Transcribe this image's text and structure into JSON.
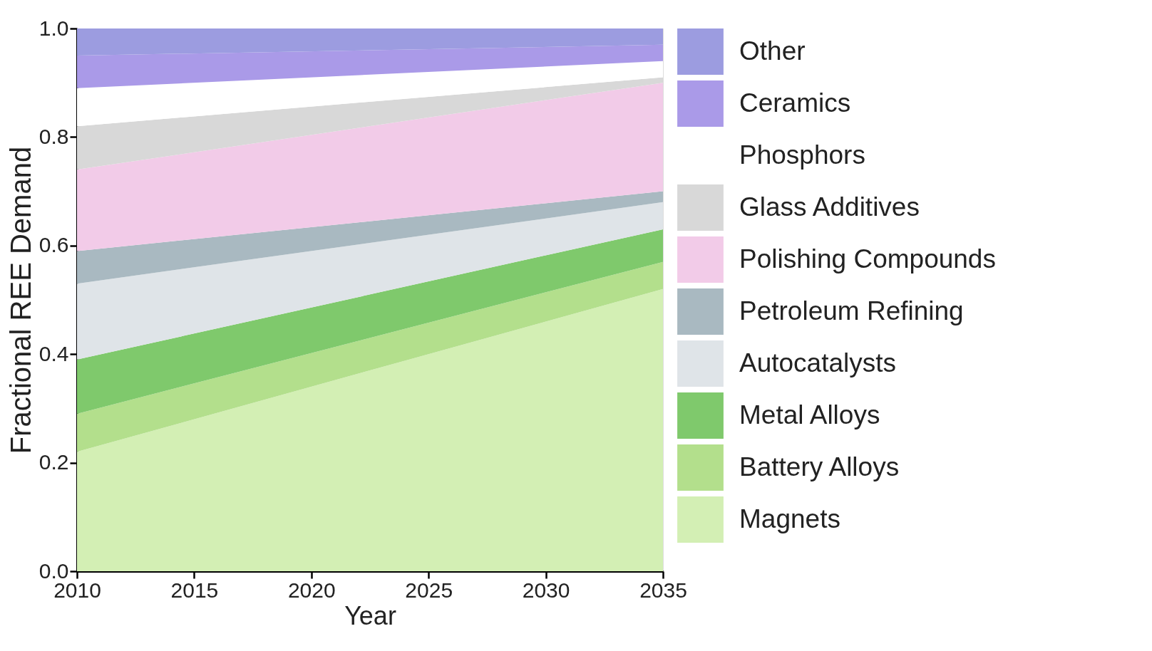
{
  "chart_data": {
    "type": "area",
    "stacked": true,
    "xlabel": "Year",
    "ylabel": "Fractional REE Demand",
    "x": [
      2010,
      2035
    ],
    "series": [
      {
        "name": "Magnets",
        "color": "#d3efb4",
        "values": [
          0.22,
          0.52
        ]
      },
      {
        "name": "Battery Alloys",
        "color": "#b3df8c",
        "values": [
          0.07,
          0.05
        ]
      },
      {
        "name": "Metal Alloys",
        "color": "#7fc96c",
        "values": [
          0.1,
          0.06
        ]
      },
      {
        "name": "Autocatalysts",
        "color": "#dfe4e8",
        "values": [
          0.14,
          0.05
        ]
      },
      {
        "name": "Petroleum Refining",
        "color": "#a9b9c1",
        "values": [
          0.06,
          0.02
        ]
      },
      {
        "name": "Polishing Compounds",
        "color": "#f2cbe8",
        "values": [
          0.15,
          0.2
        ]
      },
      {
        "name": "Glass Additives",
        "color": "#d8d8d8",
        "values": [
          0.08,
          0.01
        ]
      },
      {
        "name": "Phosphors",
        "color": "#ffffff",
        "values": [
          0.07,
          0.03
        ]
      },
      {
        "name": "Ceramics",
        "color": "#aa9ae8",
        "values": [
          0.06,
          0.03
        ]
      },
      {
        "name": "Other",
        "color": "#9c9ce0",
        "values": [
          0.05,
          0.03
        ]
      }
    ],
    "xlim": [
      2010,
      2035
    ],
    "xticks": [
      2010,
      2015,
      2020,
      2025,
      2030,
      2035
    ],
    "ylim": [
      0,
      1
    ],
    "yticks": [
      {
        "value": 0,
        "label": "0.0"
      },
      0.2,
      0.4,
      0.6,
      0.8,
      {
        "value": 1,
        "label": "1.0"
      }
    ],
    "grid": false,
    "legend": "right"
  }
}
